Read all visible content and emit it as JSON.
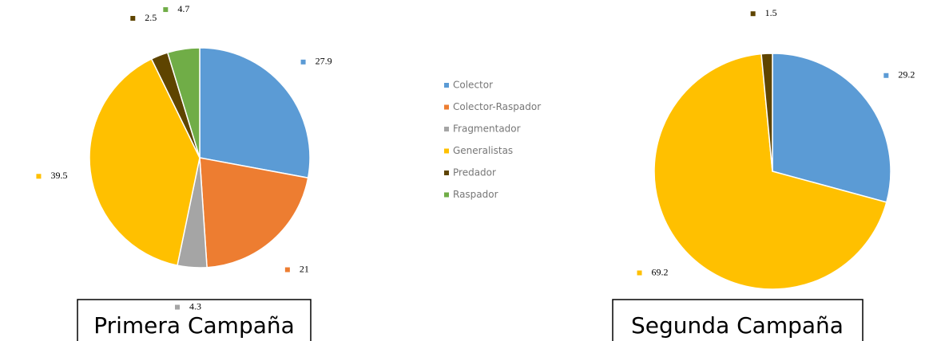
{
  "chart_data": [
    {
      "type": "pie",
      "title": "Primera Campaña",
      "categories": [
        "Colector",
        "Colector-Raspador",
        "Fragmentador",
        "Generalistas",
        "Predador",
        "Raspador"
      ],
      "values": [
        27.9,
        21,
        4.3,
        39.5,
        2.5,
        4.7
      ],
      "colors": [
        "#5b9bd5",
        "#ed7d31",
        "#a5a5a5",
        "#ffc000",
        "#5e4400",
        "#70ad47"
      ],
      "legend": "center"
    },
    {
      "type": "pie",
      "title": "Segunda Campaña",
      "categories": [
        "Colector",
        "Generalistas",
        "Predador"
      ],
      "values": [
        29.2,
        69.2,
        1.5
      ],
      "colors": [
        "#5b9bd5",
        "#ffc000",
        "#5e4400"
      ]
    }
  ]
}
